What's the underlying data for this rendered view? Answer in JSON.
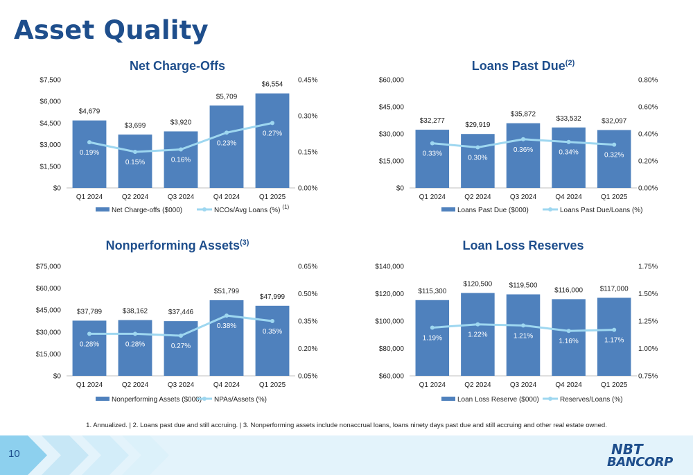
{
  "page": {
    "title": "Asset Quality",
    "page_number": "10",
    "footnote": "1. Annualized. |    2. Loans past due and still accruing.    |    3. Nonperforming assets include nonaccrual loans, loans ninety days past due and still accruing and other real estate owned.",
    "logo": {
      "line1": "NBT",
      "line2": "BANCORP"
    }
  },
  "colors": {
    "bar": "#4f81bd",
    "line": "#9ed7f0",
    "title": "#1e4e8c",
    "footer_light": "#e3f3fb",
    "footer_chevron": "#c7e7f6",
    "footer_dark_chevron": "#8dd0ee"
  },
  "chart_data": [
    {
      "type": "bar",
      "title": "Net Charge-Offs",
      "title_sup": "",
      "categories": [
        "Q1 2024",
        "Q2 2024",
        "Q3 2024",
        "Q4 2024",
        "Q1 2025"
      ],
      "series": [
        {
          "name": "Net Charge-offs ($000)",
          "kind": "bar",
          "axis": "left",
          "values": [
            4679,
            3699,
            3920,
            5709,
            6554
          ],
          "labels": [
            "$4,679",
            "$3,699",
            "$3,920",
            "$5,709",
            "$6,554"
          ]
        },
        {
          "name": "NCOs/Avg Loans (%)",
          "name_sup": "(1)",
          "kind": "line",
          "axis": "right",
          "values": [
            0.19,
            0.15,
            0.16,
            0.23,
            0.27
          ],
          "labels": [
            "0.19%",
            "0.15%",
            "0.16%",
            "0.23%",
            "0.27%"
          ]
        }
      ],
      "left_axis": {
        "min": 0,
        "max": 7500,
        "ticks": [
          0,
          1500,
          3000,
          4500,
          6000,
          7500
        ],
        "tick_labels": [
          "$0",
          "$1,500",
          "$3,000",
          "$4,500",
          "$6,000",
          "$7,500"
        ]
      },
      "right_axis": {
        "min": 0,
        "max": 0.45,
        "ticks": [
          0,
          0.15,
          0.3,
          0.45
        ],
        "tick_labels": [
          "0.00%",
          "0.15%",
          "0.30%",
          "0.45%"
        ]
      },
      "legend": "bottom"
    },
    {
      "type": "bar",
      "title": "Loans Past Due",
      "title_sup": "(2)",
      "categories": [
        "Q1 2024",
        "Q2 2024",
        "Q3 2024",
        "Q4 2024",
        "Q1 2025"
      ],
      "series": [
        {
          "name": "Loans Past Due ($000)",
          "kind": "bar",
          "axis": "left",
          "values": [
            32277,
            29919,
            35872,
            33532,
            32097
          ],
          "labels": [
            "$32,277",
            "$29,919",
            "$35,872",
            "$33,532",
            "$32,097"
          ]
        },
        {
          "name": "Loans Past Due/Loans (%)",
          "name_sup": "",
          "kind": "line",
          "axis": "right",
          "values": [
            0.33,
            0.3,
            0.36,
            0.34,
            0.32
          ],
          "labels": [
            "0.33%",
            "0.30%",
            "0.36%",
            "0.34%",
            "0.32%"
          ]
        }
      ],
      "left_axis": {
        "min": 0,
        "max": 60000,
        "ticks": [
          0,
          15000,
          30000,
          45000,
          60000
        ],
        "tick_labels": [
          "$0",
          "$15,000",
          "$30,000",
          "$45,000",
          "$60,000"
        ]
      },
      "right_axis": {
        "min": 0,
        "max": 0.8,
        "ticks": [
          0,
          0.2,
          0.4,
          0.6,
          0.8
        ],
        "tick_labels": [
          "0.00%",
          "0.20%",
          "0.40%",
          "0.60%",
          "0.80%"
        ]
      },
      "legend": "bottom"
    },
    {
      "type": "bar",
      "title": "Nonperforming Assets",
      "title_sup": "(3)",
      "categories": [
        "Q1 2024",
        "Q2 2024",
        "Q3 2024",
        "Q4 2024",
        "Q1 2025"
      ],
      "series": [
        {
          "name": "Nonperforming Assets ($000)",
          "kind": "bar",
          "axis": "left",
          "values": [
            37789,
            38162,
            37446,
            51799,
            47999
          ],
          "labels": [
            "$37,789",
            "$38,162",
            "$37,446",
            "$51,799",
            "$47,999"
          ]
        },
        {
          "name": "NPAs/Assets (%)",
          "name_sup": "",
          "kind": "line",
          "axis": "right",
          "values": [
            0.28,
            0.28,
            0.27,
            0.38,
            0.35
          ],
          "labels": [
            "0.28%",
            "0.28%",
            "0.27%",
            "0.38%",
            "0.35%"
          ]
        }
      ],
      "left_axis": {
        "min": 0,
        "max": 75000,
        "ticks": [
          0,
          15000,
          30000,
          45000,
          60000,
          75000
        ],
        "tick_labels": [
          "$0",
          "$15,000",
          "$30,000",
          "$45,000",
          "$60,000",
          "$75,000"
        ]
      },
      "right_axis": {
        "min": 0.05,
        "max": 0.65,
        "ticks": [
          0.05,
          0.2,
          0.35,
          0.5,
          0.65
        ],
        "tick_labels": [
          "0.05%",
          "0.20%",
          "0.35%",
          "0.50%",
          "0.65%"
        ]
      },
      "legend": "bottom"
    },
    {
      "type": "bar",
      "title": "Loan Loss Reserves",
      "title_sup": "",
      "categories": [
        "Q1 2024",
        "Q2 2024",
        "Q3 2024",
        "Q4 2024",
        "Q1 2025"
      ],
      "series": [
        {
          "name": "Loan Loss Reserve ($000)",
          "kind": "bar",
          "axis": "left",
          "values": [
            115300,
            120500,
            119500,
            116000,
            117000
          ],
          "labels": [
            "$115,300",
            "$120,500",
            "$119,500",
            "$116,000",
            "$117,000"
          ]
        },
        {
          "name": "Reserves/Loans (%)",
          "name_sup": "",
          "kind": "line",
          "axis": "right",
          "values": [
            1.19,
            1.22,
            1.21,
            1.16,
            1.17
          ],
          "labels": [
            "1.19%",
            "1.22%",
            "1.21%",
            "1.16%",
            "1.17%"
          ]
        }
      ],
      "left_axis": {
        "min": 60000,
        "max": 140000,
        "ticks": [
          60000,
          80000,
          100000,
          120000,
          140000
        ],
        "tick_labels": [
          "$60,000",
          "$80,000",
          "$100,000",
          "$120,000",
          "$140,000"
        ]
      },
      "right_axis": {
        "min": 0.75,
        "max": 1.75,
        "ticks": [
          0.75,
          1.0,
          1.25,
          1.5,
          1.75
        ],
        "tick_labels": [
          "0.75%",
          "1.00%",
          "1.25%",
          "1.50%",
          "1.75%"
        ]
      },
      "legend": "bottom"
    }
  ]
}
